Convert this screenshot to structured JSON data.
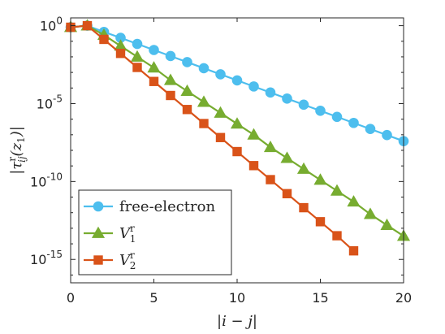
{
  "chart_data": {
    "type": "line",
    "xlabel": "|i − j|",
    "ylabel_parts": {
      "pre": "|τ",
      "sup": "r",
      "sub": "ij",
      "post": "(z",
      "post_sub": "1",
      "end": ")|"
    },
    "yscale": "log",
    "xlim": [
      0,
      20
    ],
    "ylim_log10": [
      -16.5,
      0.5
    ],
    "x_ticks": [
      0,
      5,
      10,
      15,
      20
    ],
    "x_tick_labels": [
      "0",
      "5",
      "10",
      "15",
      "20"
    ],
    "y_ticks_log10": [
      0,
      -5,
      -10,
      -15
    ],
    "y_tick_exponents": [
      "0",
      "-5",
      "-10",
      "-15"
    ],
    "y_tick_base": "10",
    "grid": false,
    "legend_position": "bottom-left",
    "series": [
      {
        "name": "free-electron",
        "legend_label": "free-electron",
        "color": "#4DBEEE",
        "marker": "circle",
        "x": [
          0,
          1,
          2,
          3,
          4,
          5,
          6,
          7,
          8,
          9,
          10,
          11,
          12,
          13,
          14,
          15,
          16,
          17,
          18,
          19,
          20
        ],
        "log10_y": [
          -0.1,
          0.0,
          -0.4,
          -0.78,
          -1.17,
          -1.56,
          -1.95,
          -2.34,
          -2.73,
          -3.12,
          -3.51,
          -3.9,
          -4.29,
          -4.68,
          -5.07,
          -5.46,
          -5.85,
          -6.24,
          -6.63,
          -7.02,
          -7.41
        ]
      },
      {
        "name": "V1^r",
        "legend_label": "V",
        "legend_sub": "1",
        "legend_sup": "r",
        "color": "#77AC30",
        "marker": "triangle",
        "x": [
          0,
          1,
          2,
          3,
          4,
          5,
          6,
          7,
          8,
          9,
          10,
          11,
          12,
          13,
          14,
          15,
          16,
          17,
          18,
          19,
          20
        ],
        "log10_y": [
          -0.1,
          0.0,
          -0.6,
          -1.3,
          -2.0,
          -2.7,
          -3.5,
          -4.2,
          -4.9,
          -5.6,
          -6.3,
          -7.0,
          -7.8,
          -8.5,
          -9.2,
          -9.9,
          -10.6,
          -11.3,
          -12.1,
          -12.8,
          -13.5
        ]
      },
      {
        "name": "V2^r",
        "legend_label": "V",
        "legend_sub": "2",
        "legend_sup": "r",
        "color": "#D95319",
        "marker": "square",
        "x": [
          0,
          1,
          2,
          3,
          4,
          5,
          6,
          7,
          8,
          9,
          10,
          11,
          12,
          13,
          14,
          15,
          16,
          17
        ],
        "log10_y": [
          -0.1,
          0.0,
          -0.88,
          -1.78,
          -2.68,
          -3.58,
          -4.48,
          -5.38,
          -6.28,
          -7.18,
          -8.08,
          -8.98,
          -9.88,
          -10.78,
          -11.68,
          -12.58,
          -13.48,
          -14.45
        ]
      }
    ]
  }
}
